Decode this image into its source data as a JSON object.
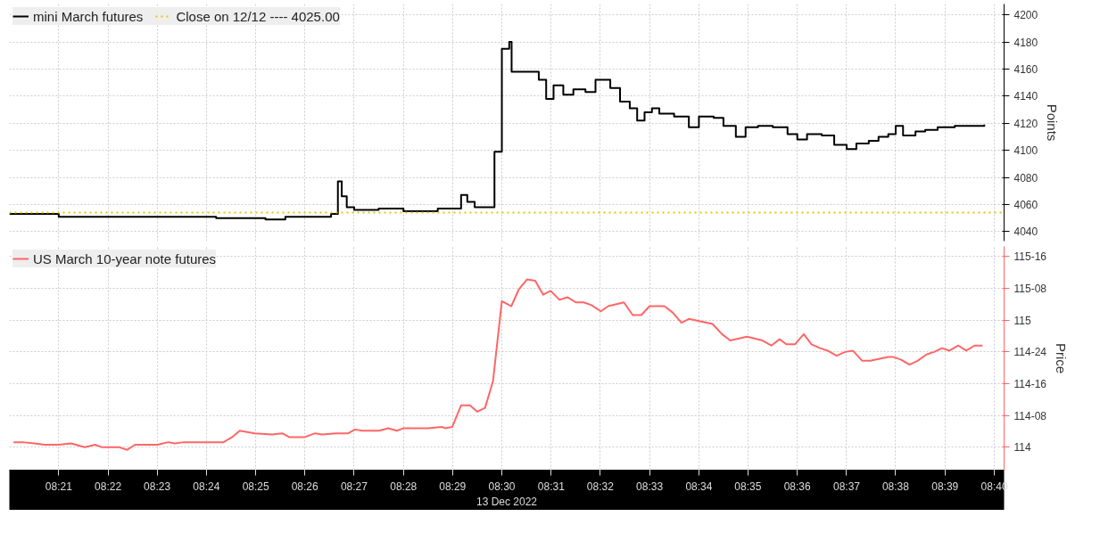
{
  "chart_data": [
    {
      "type": "step",
      "ylabel": "Points",
      "legend": "top left",
      "grid": true,
      "tick_labels": "y",
      "line_style": "solid",
      "xlim": [
        8.3333,
        8.67
      ],
      "xticks": [
        8.35,
        8.3667,
        8.3833,
        8.4,
        8.4167,
        8.4333,
        8.45,
        8.4667,
        8.4833,
        8.5,
        8.5167,
        8.5333,
        8.55,
        8.5667,
        8.5833,
        8.6,
        8.6167,
        8.6333,
        8.65,
        8.6667
      ],
      "ylim": [
        4033,
        4208
      ],
      "yticks": [
        4040,
        4060,
        4080,
        4100,
        4120,
        4140,
        4160,
        4180,
        4200
      ],
      "ref_lines": [
        {
          "axis": "y",
          "value": 4054,
          "label": "Close on 12/12 ---- 4025.00",
          "color": "#e0c800",
          "line_style": "dotted"
        }
      ],
      "series": [
        {
          "name": "mini March futures",
          "color": "#000000",
          "x": [
            8.3333,
            8.35,
            8.3667,
            8.3833,
            8.4,
            8.4033,
            8.4167,
            8.42,
            8.4267,
            8.4333,
            8.4422,
            8.4445,
            8.4458,
            8.4475,
            8.45,
            8.4583,
            8.4667,
            8.475,
            8.4783,
            8.4833,
            8.4862,
            8.4883,
            8.4908,
            8.495,
            8.4975,
            8.5,
            8.5025,
            8.5033,
            8.5067,
            8.51,
            8.5125,
            8.515,
            8.5175,
            8.5208,
            8.5242,
            8.5283,
            8.5317,
            8.5367,
            8.54,
            8.5433,
            8.5458,
            8.5483,
            8.5508,
            8.5533,
            8.5583,
            8.5633,
            8.5667,
            8.5717,
            8.575,
            8.5792,
            8.5825,
            8.5867,
            8.5917,
            8.5967,
            8.6,
            8.6033,
            8.6083,
            8.6125,
            8.6167,
            8.62,
            8.6242,
            8.6275,
            8.6308,
            8.6333,
            8.6358,
            8.64,
            8.6433,
            8.6475,
            8.6533,
            8.6583,
            8.6633
          ],
          "values": [
            4053,
            4051,
            4051,
            4051,
            4051,
            4050,
            4050,
            4049,
            4051,
            4051,
            4053,
            4077,
            4066,
            4058,
            4056,
            4057,
            4055,
            4055,
            4057,
            4057,
            4067,
            4062,
            4058,
            4058,
            4099,
            4175,
            4180,
            4158,
            4158,
            4158,
            4152,
            4138,
            4148,
            4141,
            4145,
            4143,
            4152,
            4146,
            4136,
            4131,
            4122,
            4128,
            4131,
            4127,
            4125,
            4117,
            4125,
            4124,
            4118,
            4110,
            4117,
            4118,
            4117,
            4112,
            4108,
            4112,
            4111,
            4104,
            4101,
            4105,
            4107,
            4110,
            4112,
            4118,
            4111,
            4114,
            4115,
            4117,
            4118,
            4118,
            4119
          ]
        }
      ]
    },
    {
      "type": "line",
      "ylabel": "Price",
      "xlabel": "13 Dec 2022",
      "legend": "top left",
      "grid": true,
      "line_style": "solid",
      "xlim": [
        8.3333,
        8.67
      ],
      "xticks": [
        {
          "value": 8.35,
          "label": "08:21"
        },
        {
          "value": 8.3667,
          "label": "08:22"
        },
        {
          "value": 8.3833,
          "label": "08:23"
        },
        {
          "value": 8.4,
          "label": "08:24"
        },
        {
          "value": 8.4167,
          "label": "08:25"
        },
        {
          "value": 8.4333,
          "label": "08:26"
        },
        {
          "value": 8.45,
          "label": "08:27"
        },
        {
          "value": 8.4667,
          "label": "08:28"
        },
        {
          "value": 8.4833,
          "label": "08:29"
        },
        {
          "value": 8.5,
          "label": "08:30"
        },
        {
          "value": 8.5167,
          "label": "08:31"
        },
        {
          "value": 8.5333,
          "label": "08:32"
        },
        {
          "value": 8.55,
          "label": "08:33"
        },
        {
          "value": 8.5667,
          "label": "08:34"
        },
        {
          "value": 8.5833,
          "label": "08:35"
        },
        {
          "value": 8.6,
          "label": "08:36"
        },
        {
          "value": 8.6167,
          "label": "08:37"
        },
        {
          "value": 8.6333,
          "label": "08:38"
        },
        {
          "value": 8.65,
          "label": "08:39"
        },
        {
          "value": 8.6667,
          "label": "08:40"
        }
      ],
      "ylim": [
        113.82,
        115.58
      ],
      "yticks": [
        114,
        {
          "value": 114.25,
          "label": "114-08"
        },
        {
          "value": 114.5,
          "label": "114-16"
        },
        {
          "value": 114.75,
          "label": "114-24"
        },
        115,
        {
          "value": 115.25,
          "label": "115-08"
        },
        {
          "value": 115.5,
          "label": "115-16"
        }
      ],
      "series": [
        {
          "name": "US March 10-year note futures",
          "color": "#ff6666",
          "x": [
            8.3347,
            8.3377,
            8.3417,
            8.3453,
            8.35,
            8.3542,
            8.3588,
            8.3623,
            8.3647,
            8.3705,
            8.3732,
            8.3758,
            8.3835,
            8.387,
            8.3893,
            8.3923,
            8.4058,
            8.4087,
            8.4113,
            8.4163,
            8.4222,
            8.4257,
            8.428,
            8.4333,
            8.4368,
            8.4392,
            8.4438,
            8.448,
            8.4503,
            8.4527,
            8.4585,
            8.4615,
            8.4645,
            8.4668,
            8.475,
            8.4797,
            8.4808,
            8.4832,
            8.4862,
            8.4892,
            8.4917,
            8.4943,
            8.497,
            8.5,
            8.5032,
            8.5057,
            8.5085,
            8.5113,
            8.514,
            8.5165,
            8.5195,
            8.5223,
            8.525,
            8.5277,
            8.5302,
            8.5335,
            8.536,
            8.5413,
            8.5443,
            8.5472,
            8.55,
            8.555,
            8.5578,
            8.5608,
            8.5633,
            8.5713,
            8.5745,
            8.5773,
            8.583,
            8.5882,
            8.5912,
            8.594,
            8.5963,
            8.5992,
            8.6022,
            8.6048,
            8.6077,
            8.6103,
            8.6133,
            8.6162,
            8.6188,
            8.622,
            8.6247,
            8.6307,
            8.6325,
            8.635,
            8.638,
            8.6407,
            8.6437,
            8.6463,
            8.649,
            8.6515,
            8.6545,
            8.6572,
            8.66,
            8.6627
          ],
          "values": [
            114.04,
            114.04,
            114.03,
            114.02,
            114.02,
            114.03,
            114.0,
            114.02,
            114.0,
            114.0,
            113.98,
            114.02,
            114.02,
            114.04,
            114.03,
            114.04,
            114.04,
            114.08,
            114.13,
            114.11,
            114.1,
            114.11,
            114.08,
            114.08,
            114.11,
            114.1,
            114.11,
            114.11,
            114.14,
            114.13,
            114.13,
            114.15,
            114.13,
            114.15,
            114.15,
            114.16,
            114.15,
            114.16,
            114.33,
            114.33,
            114.28,
            114.31,
            114.52,
            115.15,
            115.11,
            115.24,
            115.32,
            115.31,
            115.2,
            115.23,
            115.16,
            115.18,
            115.14,
            115.14,
            115.12,
            115.07,
            115.11,
            115.14,
            115.04,
            115.04,
            115.11,
            115.11,
            115.06,
            114.98,
            115.01,
            114.97,
            114.89,
            114.84,
            114.87,
            114.84,
            114.8,
            114.85,
            114.81,
            114.81,
            114.89,
            114.81,
            114.78,
            114.76,
            114.72,
            114.75,
            114.76,
            114.68,
            114.68,
            114.71,
            114.71,
            114.69,
            114.65,
            114.68,
            114.73,
            114.75,
            114.78,
            114.76,
            114.8,
            114.76,
            114.8,
            114.8
          ]
        }
      ]
    }
  ]
}
